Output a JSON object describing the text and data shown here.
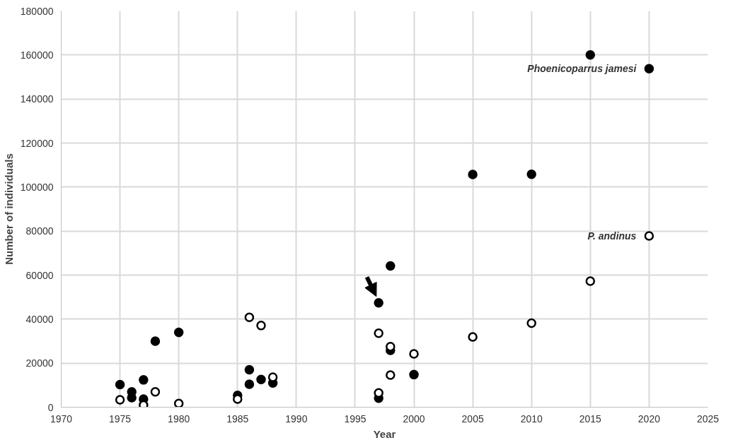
{
  "chart_data": {
    "type": "scatter",
    "xlabel": "Year",
    "ylabel": "Number of individuals",
    "xlim": [
      1970,
      2025
    ],
    "xticks": [
      1970,
      1975,
      1980,
      1985,
      1990,
      1995,
      2000,
      2005,
      2010,
      2015,
      2020,
      2025
    ],
    "ylim": [
      0,
      180000
    ],
    "yticks": [
      0,
      20000,
      40000,
      60000,
      80000,
      100000,
      120000,
      140000,
      160000,
      180000
    ],
    "grid": true,
    "marker": "circle",
    "legend": false,
    "series": [
      {
        "name": "Phoenicoparrus jamesi",
        "color": "#000000",
        "x": [
          1975,
          1976,
          1976,
          1977,
          1977,
          1978,
          1980,
          1985,
          1986,
          1986,
          1987,
          1988,
          1997,
          1997,
          1998,
          1998,
          2000,
          2005,
          2010,
          2015,
          2020
        ],
        "values": [
          10300,
          7000,
          4300,
          12400,
          3700,
          30000,
          34000,
          5400,
          17000,
          10400,
          12600,
          11000,
          47400,
          4100,
          64200,
          25800,
          14800,
          105700,
          105800,
          160000,
          153800
        ]
      },
      {
        "name": "P. andinus",
        "color": "#ffffff",
        "x": [
          1975,
          1977,
          1978,
          1980,
          1985,
          1986,
          1987,
          1988,
          1997,
          1997,
          1998,
          1998,
          2000,
          2005,
          2010,
          2015,
          2020
        ],
        "values": [
          3400,
          1000,
          7000,
          1700,
          3700,
          40800,
          37100,
          13600,
          33600,
          6500,
          27500,
          14600,
          24200,
          31900,
          38200,
          57300,
          77800
        ]
      }
    ]
  }
}
